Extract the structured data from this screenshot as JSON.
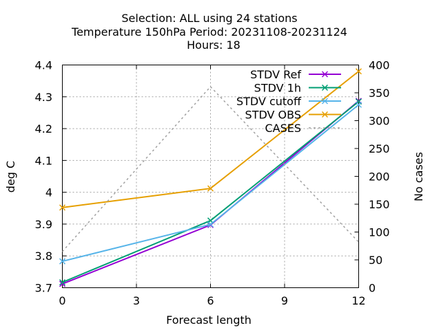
{
  "title": {
    "line1": "Selection: ALL using    24 stations",
    "line2": "Temperature 150hPa   Period: 20231108-20231124",
    "line3": "Hours:  18"
  },
  "chart_data": {
    "type": "line",
    "xlabel": "Forecast length",
    "ylabel": "deg C",
    "y2label": "No cases",
    "x_ticks": [
      0,
      3,
      6,
      9,
      12
    ],
    "xlim": [
      0,
      12
    ],
    "y_ticks": [
      "3.7",
      "3.8",
      "3.9",
      "4",
      "4.1",
      "4.2",
      "4.3",
      "4.4"
    ],
    "ylim": [
      3.7,
      4.4
    ],
    "y2_ticks": [
      "0",
      "50",
      "100",
      "150",
      "200",
      "250",
      "300",
      "350",
      "400"
    ],
    "y2lim": [
      0,
      400
    ],
    "grid": true,
    "legend_position": "top-right",
    "series": [
      {
        "name": "STDV Ref",
        "axis": "y",
        "color": "#9400d3",
        "marker": "x",
        "x": [
          0,
          6,
          12
        ],
        "values": [
          3.712,
          3.897,
          4.287
        ]
      },
      {
        "name": "STDV 1h",
        "axis": "y",
        "color": "#009e73",
        "marker": "x",
        "x": [
          0,
          6,
          12
        ],
        "values": [
          3.717,
          3.911,
          4.285
        ]
      },
      {
        "name": "STDV cutoff",
        "axis": "y",
        "color": "#56b4e9",
        "marker": "x",
        "x": [
          0,
          6,
          12
        ],
        "values": [
          3.783,
          3.899,
          4.275
        ]
      },
      {
        "name": "STDV OBS",
        "axis": "y",
        "color": "#e69f00",
        "marker": "x",
        "x": [
          0,
          6,
          12
        ],
        "values": [
          3.952,
          4.012,
          4.38
        ]
      },
      {
        "name": "CASES",
        "axis": "y2",
        "color": "#a0a0a0",
        "dashed": true,
        "x": [
          0,
          6,
          12
        ],
        "values": [
          65,
          361,
          82
        ]
      }
    ]
  }
}
